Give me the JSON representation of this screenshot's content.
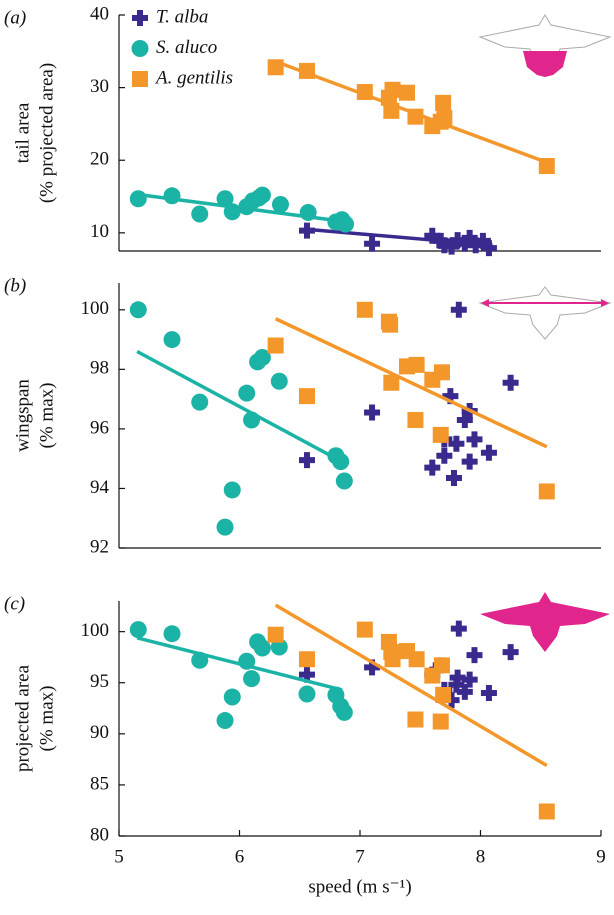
{
  "chart_data": [
    {
      "type": "scatter",
      "panel": "(a)",
      "ylabel": [
        "tail area",
        "(% projected area)"
      ],
      "xlim": [
        5,
        9
      ],
      "ylim": [
        7.5,
        40
      ],
      "yticks": [
        10,
        20,
        30,
        40
      ],
      "series": [
        {
          "name": "T. alba",
          "marker": "plus",
          "color": "#3b2a8e",
          "x": [
            6.56,
            7.1,
            7.6,
            7.67,
            7.7,
            7.76,
            7.81,
            7.87,
            7.91,
            7.96,
            8.02,
            8.07
          ],
          "values": [
            10.3,
            8.5,
            9.6,
            8.9,
            8.3,
            8.1,
            9.0,
            8.5,
            9.3,
            8.3,
            8.9,
            7.9
          ],
          "fit": {
            "x": [
              6.55,
              8.1
            ],
            "values": [
              10.5,
              8.3
            ]
          }
        },
        {
          "name": "S. aluco",
          "marker": "circle",
          "color": "#1bb3a5",
          "x": [
            5.16,
            5.44,
            5.67,
            5.88,
            5.94,
            6.06,
            6.11,
            6.16,
            6.19,
            6.34,
            6.57,
            6.8,
            6.85,
            6.88
          ],
          "values": [
            14.7,
            15.1,
            12.6,
            14.7,
            12.9,
            13.6,
            14.4,
            14.8,
            15.2,
            13.9,
            12.8,
            11.5,
            11.8,
            11.2
          ],
          "fit": {
            "x": [
              5.15,
              6.85
            ],
            "values": [
              15.3,
              11.6
            ]
          }
        },
        {
          "name": "A. gentilis",
          "marker": "square",
          "color": "#f4972a",
          "x": [
            6.3,
            6.56,
            7.04,
            7.24,
            7.26,
            7.27,
            7.39,
            7.46,
            7.6,
            7.67,
            7.69,
            7.7,
            8.55
          ],
          "values": [
            32.8,
            32.3,
            29.4,
            28.6,
            26.8,
            29.7,
            29.3,
            26.0,
            24.7,
            25.3,
            27.9,
            25.8,
            19.2
          ],
          "fit": {
            "x": [
              6.3,
              8.55
            ],
            "values": [
              33.6,
              19.7
            ]
          }
        }
      ]
    },
    {
      "type": "scatter",
      "panel": "(b)",
      "ylabel": [
        "wingspan",
        "(% max)"
      ],
      "xlim": [
        5,
        9
      ],
      "ylim": [
        92,
        100.9
      ],
      "yticks": [
        92,
        94,
        96,
        98,
        100
      ],
      "series": [
        {
          "marker": "plus",
          "color": "#3b2a8e",
          "x": [
            6.56,
            7.1,
            7.6,
            7.7,
            7.7,
            7.75,
            7.78,
            7.8,
            7.82,
            7.87,
            7.91,
            7.91,
            7.95,
            8.07,
            8.25
          ],
          "values": [
            94.95,
            96.55,
            94.7,
            95.65,
            95.1,
            97.1,
            94.35,
            95.5,
            100,
            96.3,
            96.6,
            94.9,
            95.65,
            95.2,
            97.55
          ]
        },
        {
          "marker": "circle",
          "color": "#1bb3a5",
          "x": [
            5.16,
            5.44,
            5.67,
            5.88,
            5.94,
            6.06,
            6.1,
            6.15,
            6.19,
            6.33,
            6.8,
            6.84,
            6.87
          ],
          "values": [
            100,
            99.0,
            96.9,
            92.7,
            93.95,
            97.2,
            96.3,
            98.25,
            98.4,
            97.6,
            95.1,
            94.9,
            94.25
          ],
          "fit": {
            "x": [
              5.15,
              6.85
            ],
            "values": [
              98.6,
              94.9
            ]
          }
        },
        {
          "marker": "square",
          "color": "#f4972a",
          "x": [
            6.3,
            6.56,
            7.04,
            7.24,
            7.25,
            7.26,
            7.39,
            7.46,
            7.47,
            7.6,
            7.67,
            7.68,
            8.55
          ],
          "values": [
            98.8,
            97.1,
            100,
            99.6,
            99.5,
            97.55,
            98.1,
            96.3,
            98.15,
            97.65,
            95.8,
            97.9,
            93.9
          ],
          "fit": {
            "x": [
              6.3,
              8.55
            ],
            "values": [
              99.7,
              95.4
            ]
          }
        }
      ]
    },
    {
      "type": "scatter",
      "panel": "(c)",
      "ylabel": [
        "projected area",
        "(% max)"
      ],
      "xlabel": "speed (m s⁻¹)",
      "xlim": [
        5,
        9
      ],
      "xticks": [
        5,
        6,
        7,
        8,
        9
      ],
      "ylim": [
        80,
        103
      ],
      "yticks": [
        80,
        85,
        90,
        95,
        100
      ],
      "series": [
        {
          "marker": "plus",
          "color": "#3b2a8e",
          "x": [
            6.56,
            7.1,
            7.6,
            7.67,
            7.7,
            7.76,
            7.8,
            7.81,
            7.82,
            7.87,
            7.91,
            7.95,
            8.07,
            8.25
          ],
          "values": [
            95.8,
            96.5,
            95.8,
            96.7,
            94.3,
            93.3,
            94.8,
            95.5,
            100.3,
            94.1,
            95.3,
            97.7,
            94.0,
            98.0
          ]
        },
        {
          "marker": "circle",
          "color": "#1bb3a5",
          "x": [
            5.16,
            5.44,
            5.67,
            5.88,
            5.94,
            6.06,
            6.1,
            6.15,
            6.19,
            6.33,
            6.56,
            6.8,
            6.84,
            6.87
          ],
          "values": [
            100.2,
            99.8,
            97.2,
            91.3,
            93.6,
            97.1,
            95.4,
            99,
            98.4,
            98.5,
            93.9,
            93.8,
            92.7,
            92.1
          ],
          "fit": {
            "x": [
              5.15,
              6.85
            ],
            "values": [
              99.4,
              94.3
            ]
          }
        },
        {
          "marker": "square",
          "color": "#f4972a",
          "x": [
            6.3,
            6.56,
            7.04,
            7.24,
            7.26,
            7.27,
            7.39,
            7.46,
            7.47,
            7.6,
            7.67,
            7.68,
            7.69,
            8.55
          ],
          "values": [
            99.7,
            97.3,
            100.2,
            99,
            98,
            97.3,
            98.1,
            91.4,
            97.3,
            95.7,
            91.2,
            96.7,
            93.8,
            82.4
          ],
          "fit": {
            "x": [
              6.3,
              8.55
            ],
            "values": [
              102.6,
              86.9
            ]
          }
        }
      ]
    }
  ]
}
